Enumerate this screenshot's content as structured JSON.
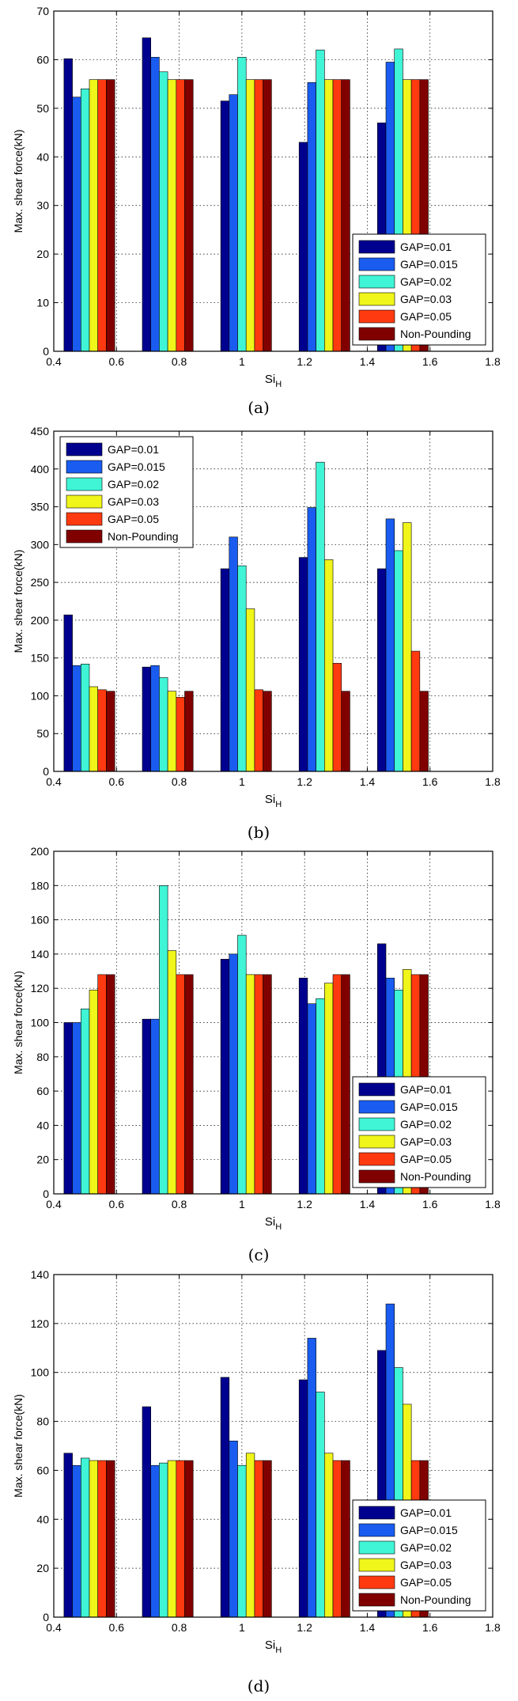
{
  "colors": {
    "GAP=0.01": "#00008f",
    "GAP=0.015": "#1a5cf0",
    "GAP=0.02": "#3ff5d6",
    "GAP=0.03": "#f0f51a",
    "GAP=0.05": "#ff3a10",
    "Non-Pounding": "#800000"
  },
  "chart_data": [
    {
      "type": "bar",
      "caption": "(a)",
      "xlabel": "Si",
      "xlabel_sub": "H",
      "ylabel": "Max. shear force(kN)",
      "xlim": [
        0.4,
        1.8
      ],
      "ylim": [
        0,
        70
      ],
      "xticks": [
        "0.4",
        "0.6",
        "0.8",
        "1",
        "1.2",
        "1.4",
        "1.6",
        "1.8"
      ],
      "yticks": [
        "0",
        "10",
        "20",
        "30",
        "40",
        "50",
        "60",
        "70"
      ],
      "grid": true,
      "legend_position": "lower-right",
      "categories": [
        0.5,
        0.75,
        1.0,
        1.25,
        1.5
      ],
      "series": [
        {
          "name": "GAP=0.01",
          "values": [
            60.2,
            64.5,
            51.5,
            43.0,
            47.0
          ]
        },
        {
          "name": "GAP=0.015",
          "values": [
            52.3,
            60.5,
            52.8,
            55.3,
            59.5
          ]
        },
        {
          "name": "GAP=0.02",
          "values": [
            54.0,
            57.5,
            60.5,
            62.0,
            62.2
          ]
        },
        {
          "name": "GAP=0.03",
          "values": [
            55.9,
            55.9,
            55.9,
            55.9,
            55.9
          ]
        },
        {
          "name": "GAP=0.05",
          "values": [
            55.9,
            55.9,
            55.9,
            55.9,
            55.9
          ]
        },
        {
          "name": "Non-Pounding",
          "values": [
            55.9,
            55.9,
            55.9,
            55.9,
            55.9
          ]
        }
      ]
    },
    {
      "type": "bar",
      "caption": "(b)",
      "xlabel": "Si",
      "xlabel_sub": "H",
      "ylabel": "Max. shear force(kN)",
      "xlim": [
        0.4,
        1.8
      ],
      "ylim": [
        0,
        450
      ],
      "xticks": [
        "0.4",
        "0.6",
        "0.8",
        "1",
        "1.2",
        "1.4",
        "1.6",
        "1.8"
      ],
      "yticks": [
        "0",
        "50",
        "100",
        "150",
        "200",
        "250",
        "300",
        "350",
        "400",
        "450"
      ],
      "grid": true,
      "legend_position": "upper-left",
      "categories": [
        0.5,
        0.75,
        1.0,
        1.25,
        1.5
      ],
      "series": [
        {
          "name": "GAP=0.01",
          "values": [
            207,
            138,
            268,
            283,
            268
          ]
        },
        {
          "name": "GAP=0.015",
          "values": [
            140,
            140,
            310,
            349,
            334
          ]
        },
        {
          "name": "GAP=0.02",
          "values": [
            142,
            124,
            272,
            409,
            292
          ]
        },
        {
          "name": "GAP=0.03",
          "values": [
            112,
            106,
            215,
            280,
            329
          ]
        },
        {
          "name": "GAP=0.05",
          "values": [
            108,
            98,
            108,
            143,
            159
          ]
        },
        {
          "name": "Non-Pounding",
          "values": [
            106,
            106,
            106,
            106,
            106
          ]
        }
      ]
    },
    {
      "type": "bar",
      "caption": "(c)",
      "xlabel": "Si",
      "xlabel_sub": "H",
      "ylabel": "Max. shear force(kN)",
      "xlim": [
        0.4,
        1.8
      ],
      "ylim": [
        0,
        200
      ],
      "xticks": [
        "0.4",
        "0.6",
        "0.8",
        "1",
        "1.2",
        "1.4",
        "1.6",
        "1.8"
      ],
      "yticks": [
        "0",
        "20",
        "40",
        "60",
        "80",
        "100",
        "120",
        "140",
        "160",
        "180",
        "200"
      ],
      "grid": true,
      "legend_position": "lower-right",
      "categories": [
        0.5,
        0.75,
        1.0,
        1.25,
        1.5
      ],
      "series": [
        {
          "name": "GAP=0.01",
          "values": [
            100,
            102,
            137,
            126,
            146
          ]
        },
        {
          "name": "GAP=0.015",
          "values": [
            100,
            102,
            140,
            111,
            126
          ]
        },
        {
          "name": "GAP=0.02",
          "values": [
            108,
            180,
            151,
            114,
            119
          ]
        },
        {
          "name": "GAP=0.03",
          "values": [
            119,
            142,
            128,
            123,
            131
          ]
        },
        {
          "name": "GAP=0.05",
          "values": [
            128,
            128,
            128,
            128,
            128
          ]
        },
        {
          "name": "Non-Pounding",
          "values": [
            128,
            128,
            128,
            128,
            128
          ]
        }
      ]
    },
    {
      "type": "bar",
      "caption": "(d)",
      "xlabel": "Si",
      "xlabel_sub": "H",
      "ylabel": "Max. shear force(kN)",
      "xlim": [
        0.4,
        1.8
      ],
      "ylim": [
        0,
        140
      ],
      "xticks": [
        "0.4",
        "0.6",
        "0.8",
        "1",
        "1.2",
        "1.4",
        "1.6",
        "1.8"
      ],
      "yticks": [
        "0",
        "20",
        "40",
        "60",
        "80",
        "100",
        "120",
        "140"
      ],
      "grid": true,
      "legend_position": "lower-right",
      "categories": [
        0.5,
        0.75,
        1.0,
        1.25,
        1.5
      ],
      "series": [
        {
          "name": "GAP=0.01",
          "values": [
            67,
            86,
            98,
            97,
            109
          ]
        },
        {
          "name": "GAP=0.015",
          "values": [
            62,
            62,
            72,
            114,
            128
          ]
        },
        {
          "name": "GAP=0.02",
          "values": [
            65,
            63,
            62,
            92,
            102
          ]
        },
        {
          "name": "GAP=0.03",
          "values": [
            64,
            64,
            67,
            67,
            87
          ]
        },
        {
          "name": "GAP=0.05",
          "values": [
            64,
            64,
            64,
            64,
            64
          ]
        },
        {
          "name": "Non-Pounding",
          "values": [
            64,
            64,
            64,
            64,
            64
          ]
        }
      ]
    }
  ]
}
